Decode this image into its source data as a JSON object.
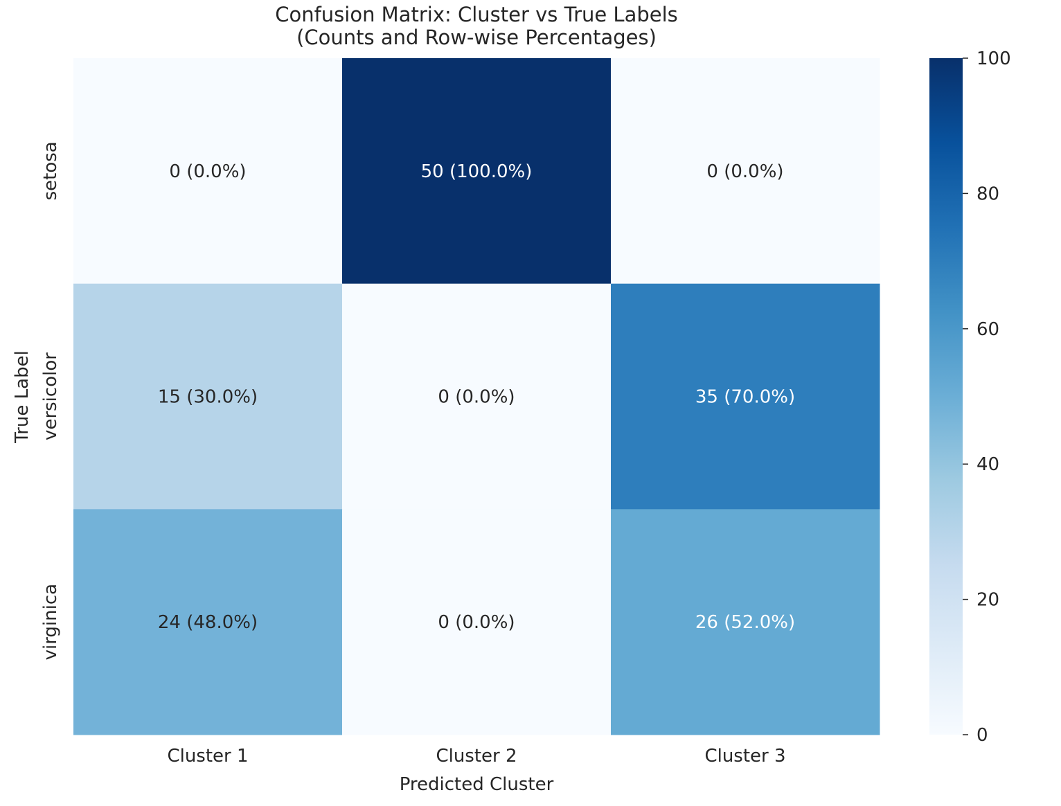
{
  "chart_data": {
    "type": "heatmap",
    "title": "Confusion Matrix: Cluster vs True Labels",
    "subtitle": "(Counts and Row-wise Percentages)",
    "xlabel": "Predicted Cluster",
    "ylabel": "True Label",
    "x_categories": [
      "Cluster 1",
      "Cluster 2",
      "Cluster 3"
    ],
    "y_categories": [
      "setosa",
      "versicolor",
      "virginica"
    ],
    "counts": [
      [
        0,
        50,
        0
      ],
      [
        15,
        0,
        35
      ],
      [
        24,
        0,
        26
      ]
    ],
    "percentages": [
      [
        0.0,
        100.0,
        0.0
      ],
      [
        30.0,
        0.0,
        70.0
      ],
      [
        48.0,
        0.0,
        52.0
      ]
    ],
    "cell_labels": [
      [
        "0 (0.0%)",
        "50 (100.0%)",
        "0 (0.0%)"
      ],
      [
        "15 (30.0%)",
        "0 (0.0%)",
        "35 (70.0%)"
      ],
      [
        "24 (48.0%)",
        "0 (0.0%)",
        "26 (52.0%)"
      ]
    ],
    "colorbar": {
      "range": [
        0,
        100
      ],
      "ticks": [
        0,
        20,
        40,
        60,
        80,
        100
      ],
      "colormap": "Blues",
      "low_color": "#f7fbff",
      "high_color": "#08306b"
    }
  }
}
